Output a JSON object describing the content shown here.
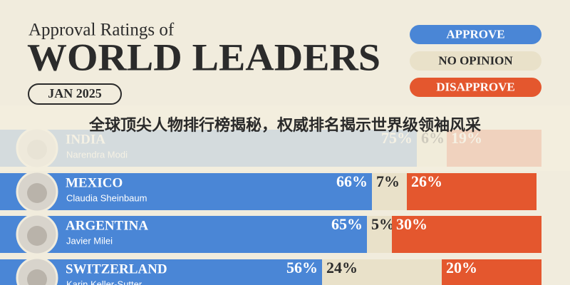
{
  "chart_data": {
    "type": "bar",
    "orientation": "horizontal",
    "stacked": true,
    "title": "Approval Ratings of",
    "headline": "WORLD LEADERS",
    "date": "JAN 2025",
    "categories": [
      "INDIA",
      "MEXICO",
      "ARGENTINA",
      "SWITZERLAND"
    ],
    "leaders": [
      "Narendra Modi",
      "Claudia Sheinbaum",
      "Javier Milei",
      "Karin Keller-Sutter"
    ],
    "xlim": [
      0,
      100
    ],
    "series": [
      {
        "name": "APPROVE",
        "color": "#4a86d6",
        "values": [
          75,
          66,
          65,
          56
        ],
        "value_labels": [
          "75%",
          "66%",
          "65%",
          "56%"
        ]
      },
      {
        "name": "NO OPINION",
        "color": "#e9e1c9",
        "values": [
          6,
          7,
          5,
          24
        ],
        "value_labels": [
          "6%",
          "7%",
          "5%",
          "24%"
        ]
      },
      {
        "name": "DISAPPROVE",
        "color": "#e4572e",
        "values": [
          19,
          26,
          30,
          20
        ],
        "value_labels": [
          "19%",
          "26%",
          "30%",
          "20%"
        ]
      }
    ]
  },
  "overlay_title": "全球顶尖人物排行榜揭秘，权威排名揭示世界级领袖风采"
}
